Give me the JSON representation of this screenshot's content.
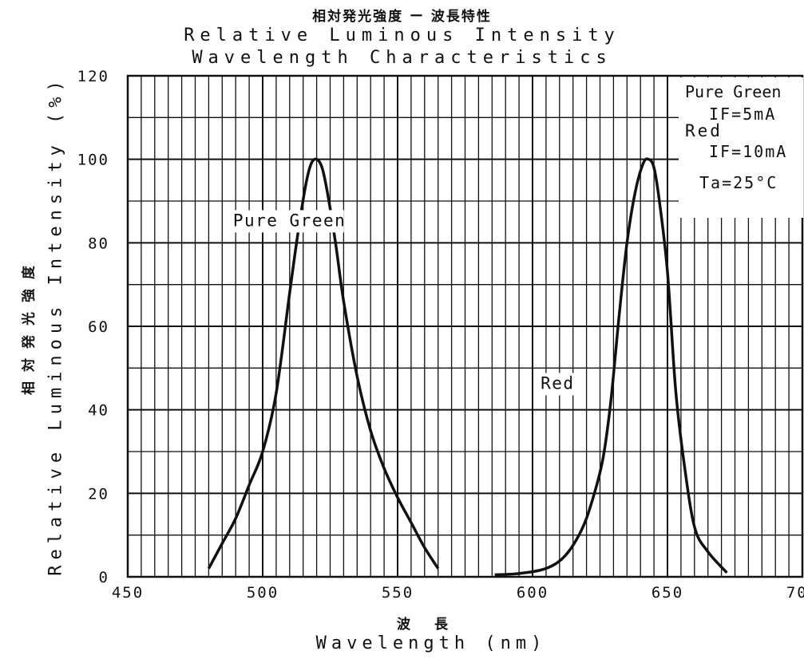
{
  "chart_data": {
    "type": "line",
    "title_jp": "相対発光強度 ー 波長特性",
    "title_line1": "Relative Luminous Intensity",
    "title_line2": "Wavelength Characteristics",
    "xlabel_jp": "波 長",
    "xlabel": "Wavelength (nm)",
    "ylabel_jp": "相対発光強度",
    "ylabel": "Relative Luminous Intensity (%)",
    "xlim": [
      450,
      700
    ],
    "ylim": [
      0,
      120
    ],
    "x_ticks": [
      450,
      500,
      550,
      600,
      650,
      700
    ],
    "y_ticks": [
      0,
      20,
      40,
      60,
      80,
      100,
      120
    ],
    "grid": true,
    "legend_box": {
      "line1": "Pure Green",
      "line2": "IF=5mA",
      "line3": "Red",
      "line4": "IF=10mA",
      "line5": "Ta=25°C"
    },
    "series": [
      {
        "name": "Pure Green",
        "label_x": 489,
        "label_y": 84,
        "x": [
          480,
          485,
          490,
          495,
          500,
          505,
          510,
          513,
          516,
          518,
          520,
          522,
          524,
          527,
          530,
          535,
          540,
          545,
          550,
          555,
          560,
          565
        ],
        "y": [
          2,
          8,
          14,
          22,
          30,
          44,
          68,
          82,
          94,
          99,
          100,
          98,
          92,
          80,
          66,
          48,
          35,
          26,
          19,
          13,
          7,
          2
        ]
      },
      {
        "name": "Red",
        "label_x": 603,
        "label_y": 45,
        "x": [
          586,
          595,
          605,
          612,
          618,
          622,
          626,
          629,
          632,
          635,
          638,
          641,
          643,
          645,
          647,
          650,
          653,
          656,
          660,
          665,
          672
        ],
        "y": [
          0.5,
          0.8,
          2,
          5,
          11,
          18,
          28,
          42,
          62,
          80,
          92,
          99,
          100,
          98,
          90,
          73,
          45,
          28,
          12,
          6,
          1
        ]
      }
    ]
  }
}
